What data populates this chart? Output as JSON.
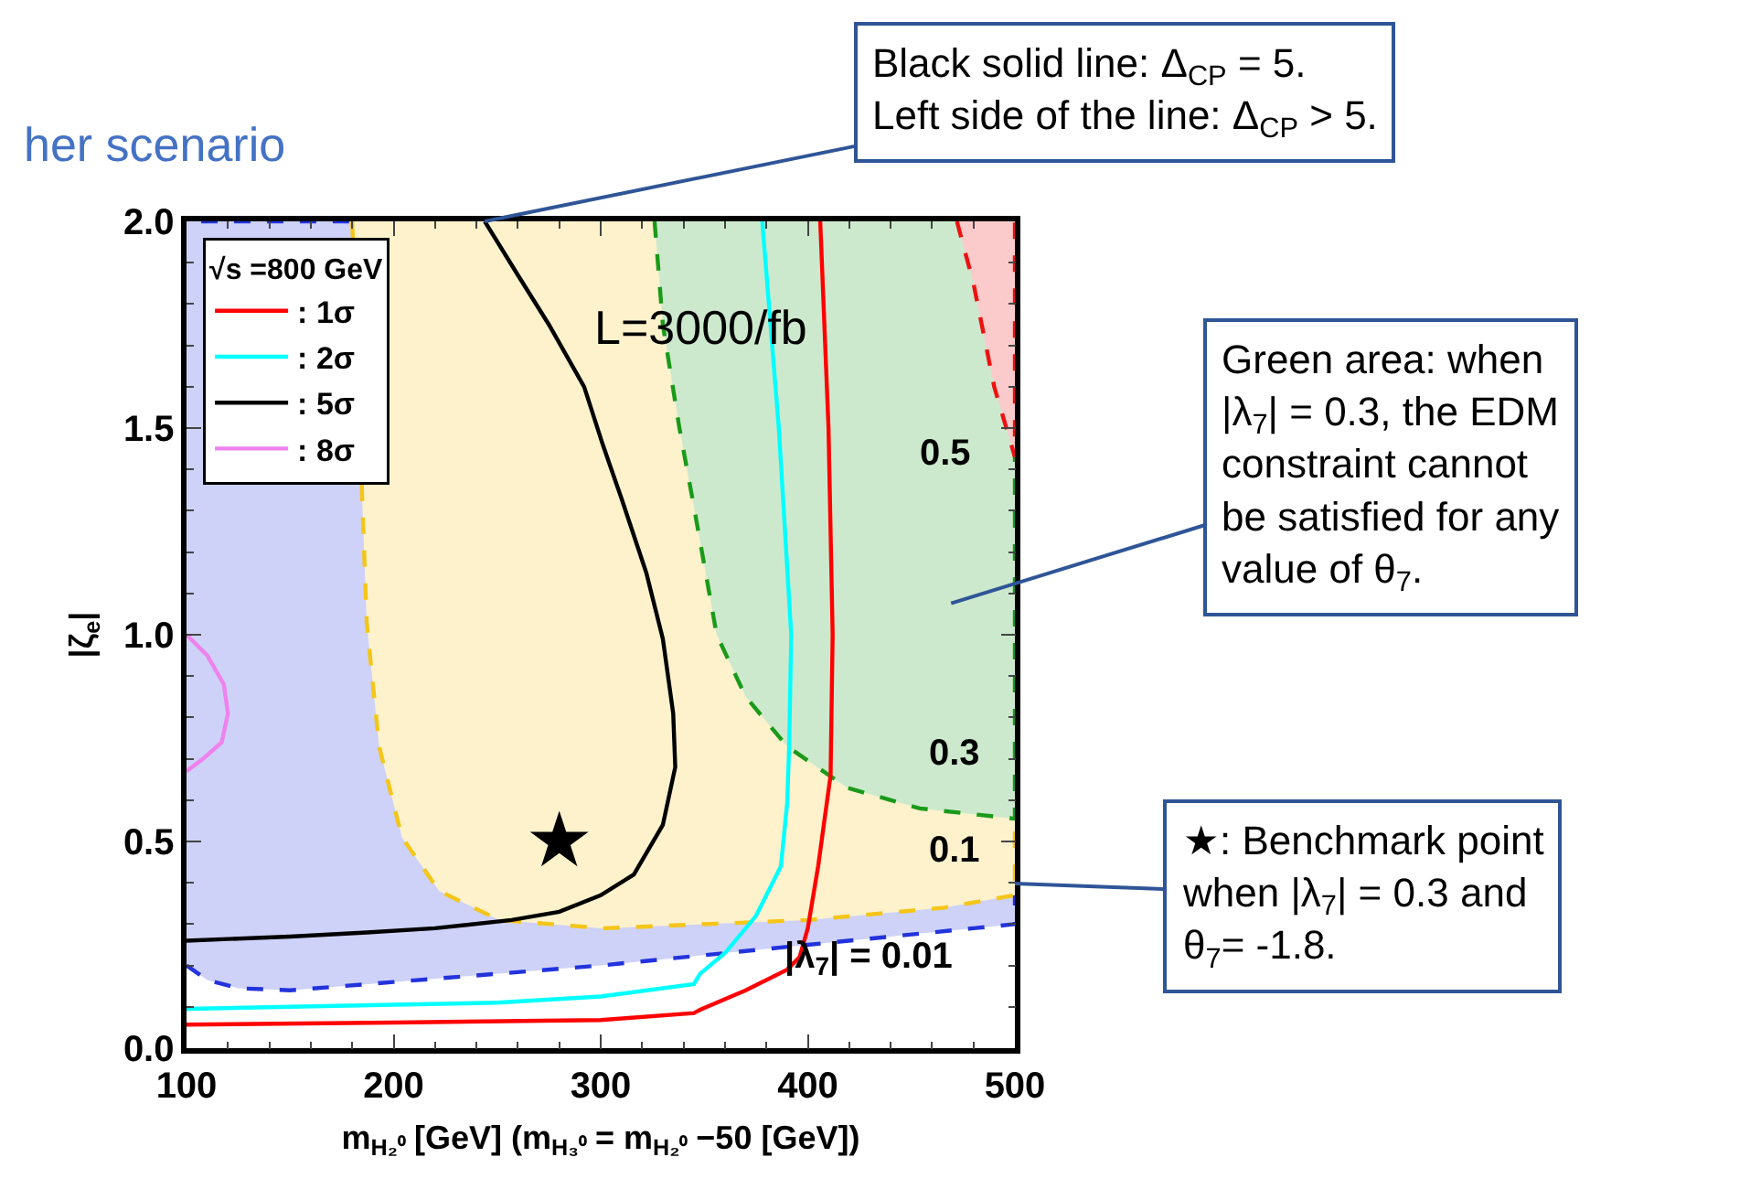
{
  "chart_data": {
    "type": "line",
    "xlabel": "m$_{H₂⁰}$ [GeV] (m$_{H₃⁰}$ = m$_{H₂⁰}$ −50 [GeV])",
    "ylabel": "|ζ$_{e}$|",
    "legend_title": "√s =800 GeV",
    "xlim": [
      100,
      500
    ],
    "ylim": [
      0,
      2
    ],
    "xticks": [
      100,
      200,
      300,
      400,
      500
    ],
    "yticks": [
      {
        "value": 0,
        "label": "0.0"
      },
      0.5,
      {
        "value": 1,
        "label": "1.0"
      },
      1.5,
      {
        "value": 2,
        "label": "2.0"
      }
    ],
    "grid": false,
    "legend": "top left",
    "series": [
      {
        "type": "area",
        "color": "#2233dd",
        "line_style": "dashed",
        "x": [
          100,
          110,
          125,
          150,
          200,
          300,
          400,
          480,
          500,
          500,
          100
        ],
        "values": [
          0.2,
          0.165,
          0.145,
          0.14,
          0.16,
          0.2,
          0.25,
          0.29,
          0.3,
          2,
          2
        ]
      },
      {
        "type": "area",
        "color": "#f5c518",
        "line_style": "dashed",
        "x": [
          180,
          187,
          193,
          204,
          222,
          251,
          301,
          400,
          466,
          500,
          500
        ],
        "values": [
          2,
          1.03,
          0.73,
          0.51,
          0.38,
          0.31,
          0.29,
          0.31,
          0.34,
          0.37,
          2
        ]
      },
      {
        "type": "area",
        "color": "#1a9a1a",
        "line_style": "dashed",
        "x": [
          326,
          330,
          338,
          345,
          356,
          370,
          390,
          419,
          454,
          500,
          500
        ],
        "values": [
          2,
          1.75,
          1.5,
          1.31,
          1,
          0.85,
          0.73,
          0.63,
          0.58,
          0.555,
          2
        ]
      },
      {
        "type": "area",
        "color": "#ee1111",
        "line_style": "dashed",
        "x": [
          472,
          480,
          490,
          500,
          500
        ],
        "values": [
          2,
          1.85,
          1.6,
          1.43,
          2
        ]
      },
      {
        "name": ": 1σ",
        "color": "#ff0000",
        "x": [
          100,
          200,
          300,
          345,
          348,
          370,
          390,
          396,
          400,
          405,
          411,
          412,
          410,
          406
        ],
        "values": [
          0.057,
          0.062,
          0.068,
          0.085,
          0.093,
          0.14,
          0.19,
          0.22,
          0.29,
          0.44,
          0.66,
          1,
          1.5,
          2
        ]
      },
      {
        "name": ": 2σ",
        "color": "#00ffff",
        "x": [
          100,
          150,
          200,
          250,
          300,
          345,
          348,
          360,
          375,
          387,
          390,
          391,
          392,
          386,
          378
        ],
        "values": [
          0.095,
          0.1,
          0.105,
          0.11,
          0.125,
          0.155,
          0.18,
          0.23,
          0.32,
          0.44,
          0.59,
          0.73,
          1,
          1.5,
          2
        ]
      },
      {
        "name": ": 5σ",
        "color": "#000000",
        "x": [
          244,
          260,
          275,
          292,
          301,
          310,
          322,
          330,
          335,
          336,
          330,
          316,
          300,
          280,
          257,
          220,
          187,
          150,
          100
        ],
        "values": [
          2,
          1.87,
          1.75,
          1.6,
          1.46,
          1.33,
          1.15,
          0.99,
          0.81,
          0.68,
          0.54,
          0.42,
          0.37,
          0.33,
          0.31,
          0.29,
          0.28,
          0.27,
          0.26
        ]
      },
      {
        "name": ": 8σ",
        "color": "#ee82ee",
        "x": [
          100,
          110,
          118,
          120,
          117,
          108,
          100
        ],
        "values": [
          1,
          0.95,
          0.88,
          0.81,
          0.74,
          0.7,
          0.67
        ]
      },
      {
        "type": "scatter",
        "marker": "star",
        "color": "#000000",
        "x": [
          280
        ],
        "values": [
          0.5
        ]
      }
    ],
    "annotations": [
      "her scenario",
      "L=3000/fb",
      "0.5",
      "0.3",
      "0.1",
      "|λ$_{7}$| = 0.01",
      {
        "text": "Black solid line: Δ$_{CP}$ = 5.\nLeft side of the line: Δ$_{CP}$ > 5.",
        "x": 244,
        "y": 2
      },
      "Green area: when\n|λ$_{7}$| = 0.3, the EDM\nconstraint cannot\nbe satisfied for any\nvalue of θ$_{7}$.",
      "★: Benchmark point\nwhen |λ$_{7}$| = 0.3 and\nθ$_{7}$= -1.8."
    ]
  }
}
